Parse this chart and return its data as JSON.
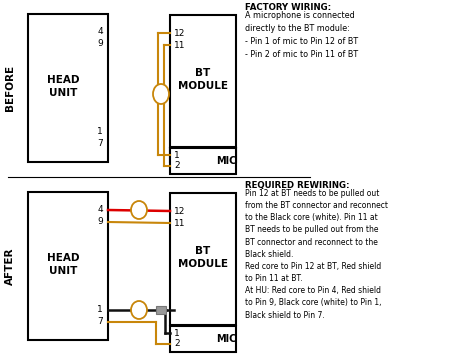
{
  "wire_brown": "#c8860a",
  "wire_black": "#111111",
  "wire_red": "#dd0000",
  "before_label": "BEFORE",
  "after_label": "AFTER",
  "factory_title": "FACTORY WIRING:",
  "factory_text": "A microphone is connected\ndirectly to the BT module:\n- Pin 1 of mic to Pin 12 of BT\n- Pin 2 of mic to Pin 11 of BT",
  "required_title": "REQUIRED REWIRING:",
  "required_text": "Pin 12 at BT needs to be pulled out\nfrom the BT connector and reconnect\nto the Black core (white). Pin 11 at\nBT needs to be pulled out from the\nBT connector and reconnect to the\nBlack shield.\nRed core to Pin 12 at BT, Red shield\nto Pin 11 at BT.\nAt HU: Red core to Pin 4, Red shield\nto Pin 9, Black core (white) to Pin 1,\nBlack shield to Pin 7."
}
